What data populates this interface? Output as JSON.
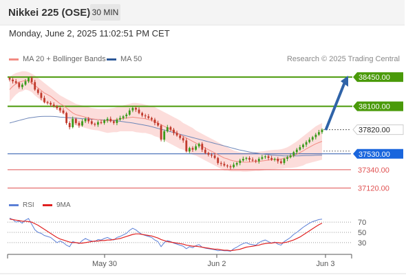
{
  "header": {
    "instrument": "Nikkei 225 (OSE)",
    "interval": "30 MIN",
    "datetime": "Monday, June 2, 2025 11:02:51 PM CET"
  },
  "legend": {
    "items": [
      {
        "label": "MA 20 + Bollinger Bands",
        "color": "#f28b82"
      },
      {
        "label": "MA 50",
        "color": "#2b5797"
      }
    ],
    "credit": "Research © 2025 Trading Central"
  },
  "rsi_legend": {
    "items": [
      {
        "label": "RSI",
        "color": "#5b7fd6"
      },
      {
        "label": "9MA",
        "color": "#e02020"
      }
    ]
  },
  "colors": {
    "up": "#3a9a1a",
    "down": "#c0392b",
    "resistance": "#4a9a0a",
    "support": "#e05050",
    "pivot_line": "#2255aa",
    "pivot_badge": "#1a66dd",
    "target_arrow": "#2f63a8",
    "bollinger_fill": "#fbd5d2",
    "ma20": "#f28b82",
    "ma50": "#6d86b8"
  },
  "chart_data": [
    {
      "type": "candlestick",
      "title": "",
      "x_ticks": [
        "May 30",
        "Jun 2",
        "Jun 3"
      ],
      "ylim": [
        37050,
        38550
      ],
      "levels": [
        {
          "value": 38450,
          "label": "38450.00",
          "kind": "resistance"
        },
        {
          "value": 38100,
          "label": "38100.00",
          "kind": "resistance"
        },
        {
          "value": 37820,
          "label": "37820.00",
          "kind": "last"
        },
        {
          "value": 37530,
          "label": "37530.00",
          "kind": "pivot"
        },
        {
          "value": 37340,
          "label": "37340.00",
          "kind": "support"
        },
        {
          "value": 37120,
          "label": "37120.00",
          "kind": "support"
        }
      ],
      "target": {
        "from": 37820,
        "to": 38450
      },
      "closes": [
        38420,
        38400,
        38380,
        38330,
        38360,
        38400,
        38440,
        38390,
        38300,
        38260,
        38200,
        38150,
        38140,
        38120,
        38100,
        38080,
        38050,
        38020,
        37900,
        37850,
        37950,
        37900,
        37870,
        37920,
        37950,
        37920,
        37890,
        37880,
        37910,
        37900,
        37930,
        37950,
        37920,
        37900,
        37940,
        37960,
        37980,
        38000,
        38050,
        38080,
        38060,
        38020,
        37990,
        37980,
        37960,
        37940,
        37900,
        37870,
        37700,
        37800,
        37850,
        37820,
        37780,
        37750,
        37720,
        37690,
        37560,
        37600,
        37580,
        37620,
        37650,
        37580,
        37540,
        37520,
        37510,
        37480,
        37420,
        37410,
        37390,
        37380,
        37370,
        37400,
        37420,
        37450,
        37470,
        37480,
        37460,
        37450,
        37440,
        37470,
        37490,
        37500,
        37480,
        37460,
        37470,
        37440,
        37420,
        37470,
        37490,
        37510,
        37550,
        37580,
        37610,
        37640,
        37670,
        37700,
        37730,
        37760,
        37790,
        37820
      ],
      "ma20": [
        38300,
        38340,
        38370,
        38390,
        38400,
        38410,
        38400,
        38380,
        38350,
        38320,
        38290,
        38260,
        38240,
        38220,
        38190,
        38160,
        38130,
        38110,
        38080,
        38050,
        38020,
        38000,
        37990,
        37980,
        37970,
        37960,
        37950,
        37945,
        37940,
        37935,
        37930,
        37925,
        37930,
        37935,
        37940,
        37950,
        37955,
        37960,
        37965,
        37970,
        37965,
        37960,
        37955,
        37950,
        37940,
        37930,
        37915,
        37900,
        37880,
        37860,
        37840,
        37820,
        37800,
        37780,
        37760,
        37740,
        37720,
        37700,
        37680,
        37660,
        37640,
        37620,
        37600,
        37580,
        37560,
        37540,
        37520,
        37500,
        37480,
        37470,
        37455,
        37445,
        37440,
        37435,
        37430,
        37430,
        37432,
        37435,
        37438,
        37440,
        37445,
        37450,
        37455,
        37460,
        37462,
        37465,
        37468,
        37475,
        37485,
        37495,
        37510,
        37525,
        37545,
        37565,
        37590,
        37610,
        37630,
        37650,
        37665,
        37680
      ],
      "bb_upper": [
        38450,
        38480,
        38500,
        38510,
        38520,
        38520,
        38510,
        38490,
        38470,
        38440,
        38410,
        38380,
        38350,
        38320,
        38290,
        38260,
        38230,
        38210,
        38190,
        38170,
        38150,
        38130,
        38120,
        38110,
        38100,
        38090,
        38080,
        38075,
        38070,
        38070,
        38070,
        38070,
        38075,
        38080,
        38090,
        38100,
        38110,
        38120,
        38130,
        38140,
        38140,
        38135,
        38130,
        38120,
        38110,
        38100,
        38090,
        38070,
        38050,
        38030,
        38010,
        37990,
        37970,
        37950,
        37930,
        37900,
        37880,
        37860,
        37840,
        37810,
        37790,
        37770,
        37750,
        37730,
        37710,
        37690,
        37670,
        37650,
        37630,
        37610,
        37590,
        37570,
        37560,
        37550,
        37545,
        37545,
        37545,
        37548,
        37550,
        37555,
        37560,
        37565,
        37570,
        37575,
        37578,
        37580,
        37585,
        37595,
        37610,
        37630,
        37655,
        37680,
        37710,
        37740,
        37770,
        37800,
        37830,
        37860,
        37880,
        37900
      ],
      "bb_lower": [
        38150,
        38200,
        38240,
        38270,
        38280,
        38300,
        38290,
        38270,
        38230,
        38200,
        38170,
        38140,
        38130,
        38120,
        38090,
        38060,
        38030,
        38010,
        37970,
        37930,
        37890,
        37870,
        37860,
        37850,
        37840,
        37830,
        37820,
        37815,
        37810,
        37800,
        37790,
        37780,
        37785,
        37790,
        37790,
        37800,
        37800,
        37800,
        37800,
        37800,
        37790,
        37785,
        37780,
        37780,
        37770,
        37760,
        37740,
        37730,
        37710,
        37690,
        37670,
        37650,
        37630,
        37610,
        37590,
        37580,
        37560,
        37540,
        37520,
        37510,
        37490,
        37470,
        37450,
        37430,
        37410,
        37390,
        37370,
        37350,
        37330,
        37330,
        37320,
        37320,
        37320,
        37320,
        37315,
        37315,
        37319,
        37322,
        37326,
        37325,
        37330,
        37335,
        37340,
        37345,
        37346,
        37350,
        37351,
        37355,
        37360,
        37360,
        37365,
        37370,
        37380,
        37390,
        37410,
        37420,
        37430,
        37440,
        37450,
        37460
      ],
      "ma50": [
        37900,
        37910,
        37920,
        37930,
        37940,
        37950,
        37960,
        37965,
        37970,
        37975,
        37978,
        37980,
        37980,
        37980,
        37978,
        37975,
        37970,
        37968,
        37965,
        37962,
        37960,
        37958,
        37955,
        37952,
        37950,
        37948,
        37945,
        37943,
        37940,
        37938,
        37935,
        37933,
        37930,
        37928,
        37925,
        37920,
        37915,
        37910,
        37905,
        37900,
        37893,
        37886,
        37879,
        37872,
        37865,
        37855,
        37845,
        37835,
        37825,
        37815,
        37805,
        37795,
        37785,
        37775,
        37765,
        37755,
        37745,
        37735,
        37725,
        37715,
        37705,
        37695,
        37685,
        37675,
        37665,
        37655,
        37645,
        37635,
        37625,
        37615,
        37605,
        37595,
        37585,
        37575,
        37568,
        37560,
        37552,
        37545,
        37540,
        37535,
        37530,
        37525,
        37520,
        37515,
        37512,
        37510,
        37508,
        37506,
        37505,
        37505,
        37505,
        37506,
        37507,
        37508,
        37509,
        37510,
        37511,
        37512,
        37513,
        37514
      ]
    },
    {
      "type": "line",
      "title": "",
      "ylim": [
        15,
        85
      ],
      "y_ticks": [
        70,
        50,
        30
      ],
      "series": [
        {
          "name": "RSI",
          "values": [
            78,
            75,
            70,
            72,
            68,
            74,
            77,
            66,
            55,
            50,
            48,
            44,
            42,
            40,
            35,
            30,
            33,
            30,
            25,
            22,
            32,
            30,
            28,
            34,
            38,
            35,
            33,
            32,
            36,
            35,
            38,
            40,
            37,
            35,
            40,
            42,
            45,
            48,
            54,
            58,
            55,
            50,
            46,
            44,
            42,
            40,
            35,
            32,
            22,
            30,
            34,
            32,
            29,
            27,
            25,
            23,
            18,
            22,
            20,
            24,
            26,
            21,
            19,
            18,
            17,
            16,
            14,
            15,
            14,
            14,
            13,
            18,
            21,
            25,
            28,
            30,
            27,
            26,
            25,
            30,
            33,
            35,
            32,
            29,
            31,
            27,
            25,
            32,
            36,
            40,
            46,
            50,
            55,
            60,
            64,
            68,
            71,
            73,
            75,
            76
          ]
        },
        {
          "name": "9MA",
          "values": [
            76,
            75,
            74,
            73,
            72,
            72,
            71,
            70,
            67,
            64,
            60,
            56,
            52,
            48,
            44,
            40,
            37,
            35,
            33,
            31,
            30,
            30,
            29,
            29,
            30,
            31,
            32,
            33,
            33,
            34,
            34,
            35,
            35,
            36,
            37,
            38,
            40,
            42,
            44,
            46,
            47,
            47,
            46,
            45,
            44,
            43,
            41,
            39,
            36,
            34,
            32,
            31,
            30,
            29,
            28,
            27,
            25,
            24,
            23,
            23,
            22,
            21,
            20,
            19,
            18,
            17,
            17,
            16,
            15,
            15,
            14,
            15,
            16,
            17,
            19,
            21,
            22,
            23,
            24,
            25,
            27,
            28,
            29,
            29,
            30,
            30,
            29,
            30,
            31,
            33,
            35,
            38,
            41,
            45,
            49,
            53,
            57,
            61,
            65,
            68
          ]
        }
      ]
    }
  ]
}
